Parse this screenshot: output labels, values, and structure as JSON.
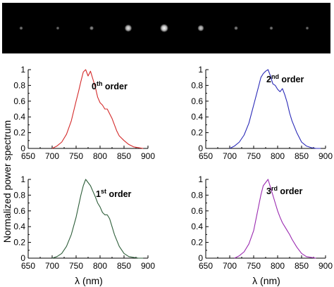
{
  "figure": {
    "ylabel": "Normalized power spectrum",
    "xlabel": "λ (nm)",
    "strip": {
      "background": "#000000",
      "spot_intensities": [
        0.25,
        0.2,
        0.35,
        0.85,
        1.0,
        0.7,
        0.3,
        0.25,
        0.2
      ]
    }
  },
  "chart_data": [
    {
      "type": "line",
      "label_base": "0",
      "label_sup": "th",
      "label_tail": " order",
      "color": "#d42a2a",
      "xlim": [
        650,
        900
      ],
      "ylim": [
        0,
        1
      ],
      "xticks": [
        "650",
        "700",
        "750",
        "800",
        "850",
        "900"
      ],
      "yticks": [
        "0",
        "0.2",
        "0.4",
        "0.6",
        "0.8",
        "1"
      ],
      "x": [
        700,
        710,
        720,
        730,
        740,
        750,
        755,
        760,
        765,
        770,
        775,
        780,
        785,
        790,
        795,
        800,
        805,
        810,
        815,
        820,
        825,
        830,
        835,
        840,
        850,
        860,
        870,
        880,
        890
      ],
      "y": [
        0.0,
        0.03,
        0.08,
        0.18,
        0.35,
        0.6,
        0.72,
        0.85,
        0.97,
        1.0,
        0.92,
        0.98,
        0.88,
        0.78,
        0.65,
        0.58,
        0.55,
        0.5,
        0.5,
        0.44,
        0.38,
        0.3,
        0.22,
        0.16,
        0.1,
        0.05,
        0.02,
        0.01,
        0.0
      ]
    },
    {
      "type": "line",
      "label_base": "2",
      "label_sup": "nd",
      "label_tail": " order",
      "color": "#2a2ab8",
      "xlim": [
        650,
        900
      ],
      "ylim": [
        0,
        1
      ],
      "xticks": [
        "650",
        "700",
        "750",
        "800",
        "850",
        "900"
      ],
      "yticks": [
        "0",
        "0.2",
        "0.4",
        "0.6",
        "0.8",
        "1"
      ],
      "x": [
        700,
        710,
        720,
        730,
        740,
        750,
        760,
        765,
        770,
        775,
        780,
        785,
        790,
        795,
        800,
        805,
        810,
        815,
        820,
        825,
        830,
        840,
        850,
        860,
        870,
        880,
        890
      ],
      "y": [
        0.0,
        0.03,
        0.08,
        0.17,
        0.32,
        0.55,
        0.78,
        0.9,
        0.95,
        0.98,
        1.0,
        0.92,
        0.82,
        0.8,
        0.75,
        0.72,
        0.76,
        0.68,
        0.58,
        0.45,
        0.35,
        0.2,
        0.08,
        0.03,
        0.01,
        0.0,
        0.0
      ]
    },
    {
      "type": "line",
      "label_base": "1",
      "label_sup": "st",
      "label_tail": " order",
      "color": "#2e5e3a",
      "xlim": [
        650,
        900
      ],
      "ylim": [
        0,
        1
      ],
      "xticks": [
        "650",
        "700",
        "750",
        "800",
        "850",
        "900"
      ],
      "yticks": [
        "0",
        "0.2",
        "0.4",
        "0.6",
        "0.8",
        "1"
      ],
      "x": [
        700,
        710,
        720,
        730,
        740,
        750,
        755,
        760,
        765,
        770,
        775,
        780,
        785,
        790,
        795,
        800,
        805,
        810,
        815,
        820,
        825,
        830,
        840,
        850,
        860,
        870,
        880,
        890
      ],
      "y": [
        0.0,
        0.02,
        0.06,
        0.15,
        0.3,
        0.52,
        0.66,
        0.8,
        0.92,
        1.0,
        0.96,
        0.92,
        0.85,
        0.78,
        0.7,
        0.65,
        0.58,
        0.55,
        0.55,
        0.5,
        0.4,
        0.3,
        0.15,
        0.06,
        0.02,
        0.01,
        0.0,
        0.0
      ]
    },
    {
      "type": "line",
      "label_base": "3",
      "label_sup": "rd",
      "label_tail": " order",
      "color": "#9a2ab0",
      "xlim": [
        650,
        900
      ],
      "ylim": [
        0,
        1
      ],
      "xticks": [
        "650",
        "700",
        "750",
        "800",
        "850",
        "900"
      ],
      "yticks": [
        "0",
        "0.2",
        "0.4",
        "0.6",
        "0.8",
        "1"
      ],
      "x": [
        710,
        720,
        730,
        740,
        750,
        755,
        760,
        765,
        770,
        775,
        780,
        785,
        790,
        795,
        800,
        805,
        810,
        815,
        820,
        825,
        830,
        840,
        850,
        860,
        870,
        880
      ],
      "y": [
        0.0,
        0.03,
        0.08,
        0.18,
        0.35,
        0.5,
        0.65,
        0.8,
        0.92,
        0.96,
        1.0,
        0.9,
        0.8,
        0.7,
        0.6,
        0.52,
        0.45,
        0.4,
        0.35,
        0.3,
        0.24,
        0.14,
        0.06,
        0.02,
        0.01,
        0.0
      ]
    }
  ]
}
